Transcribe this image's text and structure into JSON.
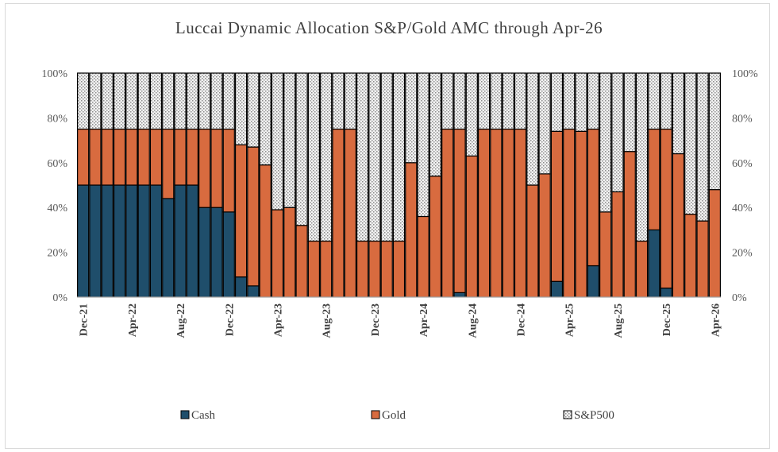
{
  "chart_data": {
    "type": "bar",
    "stacked": true,
    "title": "Luccai Dynamic Allocation S&P/Gold AMC through Apr-26",
    "xlabel": "",
    "ylabel": "",
    "ylim": [
      0,
      1
    ],
    "grid": false,
    "legend_position": "bottom",
    "y_ticks": [
      "0%",
      "20%",
      "40%",
      "60%",
      "80%",
      "100%"
    ],
    "y_ticks_right": [
      "0%",
      "20%",
      "40%",
      "60%",
      "80%",
      "100%"
    ],
    "x_tick_labels": [
      "Dec-21",
      "Apr-22",
      "Aug-22",
      "Dec-22",
      "Apr-23",
      "Aug-23",
      "Dec-23",
      "Apr-24",
      "Aug-24",
      "Dec-24",
      "Apr-25",
      "Aug-25",
      "Dec-25",
      "Apr-26"
    ],
    "categories": [
      "Dec-21",
      "Jan-22",
      "Feb-22",
      "Mar-22",
      "Apr-22",
      "May-22",
      "Jun-22",
      "Jul-22",
      "Aug-22",
      "Sep-22",
      "Oct-22",
      "Nov-22",
      "Dec-22",
      "Jan-23",
      "Feb-23",
      "Mar-23",
      "Apr-23",
      "May-23",
      "Jun-23",
      "Jul-23",
      "Aug-23",
      "Sep-23",
      "Oct-23",
      "Nov-23",
      "Dec-23",
      "Jan-24",
      "Feb-24",
      "Mar-24",
      "Apr-24",
      "May-24",
      "Jun-24",
      "Jul-24",
      "Aug-24",
      "Sep-24",
      "Oct-24",
      "Nov-24",
      "Dec-24",
      "Jan-25",
      "Feb-25",
      "Mar-25",
      "Apr-25",
      "May-25",
      "Jun-25",
      "Jul-25",
      "Aug-25",
      "Sep-25",
      "Oct-25",
      "Nov-25",
      "Dec-25",
      "Jan-26",
      "Feb-26",
      "Mar-26",
      "Apr-26"
    ],
    "series": [
      {
        "name": "Cash",
        "color": "#1f4e6b",
        "values": [
          0.5,
          0.5,
          0.5,
          0.5,
          0.5,
          0.5,
          0.5,
          0.44,
          0.5,
          0.5,
          0.4,
          0.4,
          0.38,
          0.09,
          0.05,
          0,
          0,
          0,
          0,
          0,
          0,
          0,
          0,
          0,
          0,
          0,
          0,
          0,
          0,
          0,
          0,
          0.02,
          0,
          0,
          0,
          0,
          0,
          0,
          0,
          0.07,
          0,
          0,
          0.14,
          0,
          0,
          0,
          0,
          0.3,
          0.04,
          0,
          0,
          0,
          0
        ]
      },
      {
        "name": "Gold",
        "color": "#d86b3f",
        "values": [
          0.25,
          0.25,
          0.25,
          0.25,
          0.25,
          0.25,
          0.25,
          0.31,
          0.25,
          0.25,
          0.35,
          0.35,
          0.37,
          0.59,
          0.62,
          0.59,
          0.39,
          0.4,
          0.32,
          0.25,
          0.25,
          0.75,
          0.75,
          0.25,
          0.25,
          0.25,
          0.25,
          0.6,
          0.36,
          0.54,
          0.75,
          0.73,
          0.63,
          0.75,
          0.75,
          0.75,
          0.75,
          0.5,
          0.55,
          0.67,
          0.75,
          0.74,
          0.61,
          0.38,
          0.47,
          0.65,
          0.25,
          0.45,
          0.71,
          0.64,
          0.37,
          0.34,
          0.48
        ]
      },
      {
        "name": "S&P500",
        "color": "#e3e3e3",
        "values": [
          0.25,
          0.25,
          0.25,
          0.25,
          0.25,
          0.25,
          0.25,
          0.25,
          0.25,
          0.25,
          0.25,
          0.25,
          0.25,
          0.32,
          0.33,
          0.41,
          0.61,
          0.6,
          0.68,
          0.75,
          0.75,
          0.25,
          0.25,
          0.75,
          0.75,
          0.75,
          0.75,
          0.4,
          0.64,
          0.46,
          0.25,
          0.25,
          0.37,
          0.25,
          0.25,
          0.25,
          0.25,
          0.5,
          0.45,
          0.26,
          0.25,
          0.26,
          0.25,
          0.62,
          0.53,
          0.35,
          0.75,
          0.25,
          0.25,
          0.36,
          0.63,
          0.66,
          0.52
        ]
      }
    ]
  }
}
